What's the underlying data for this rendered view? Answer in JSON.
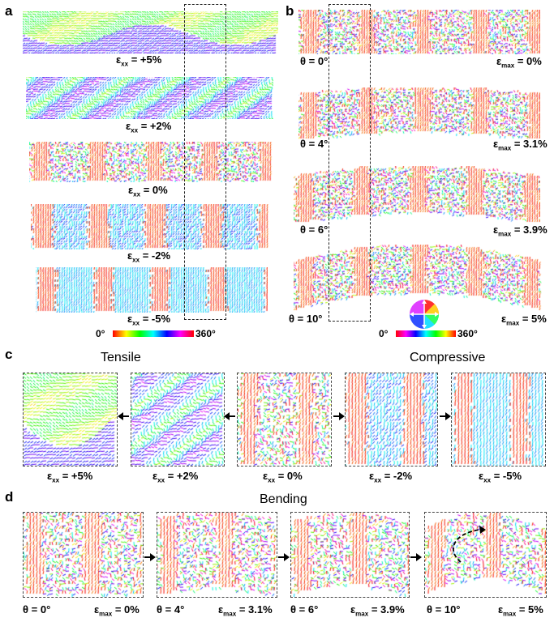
{
  "panels": {
    "a": {
      "letter": "a",
      "strips": [
        {
          "label": "ε",
          "sub": "xx",
          "value": "= +5%",
          "mode": "tensile5"
        },
        {
          "label": "ε",
          "sub": "xx",
          "value": "= +2%",
          "mode": "tensile2"
        },
        {
          "label": "ε",
          "sub": "xx",
          "value": "= 0%",
          "mode": "neutral"
        },
        {
          "label": "ε",
          "sub": "xx",
          "value": "= -2%",
          "mode": "comp2"
        },
        {
          "label": "ε",
          "sub": "xx",
          "value": "= -5%",
          "mode": "comp5"
        }
      ],
      "colorbar": {
        "min_label": "0°",
        "max_label": "360°"
      }
    },
    "b": {
      "letter": "b",
      "strips": [
        {
          "theta": "θ = 0°",
          "label": "ε",
          "sub": "max",
          "value": "= 0%",
          "bend": 0
        },
        {
          "theta": "θ = 4°",
          "label": "ε",
          "sub": "max",
          "value": "= 3.1%",
          "bend": 4
        },
        {
          "theta": "θ = 6°",
          "label": "ε",
          "sub": "max",
          "value": "= 3.9%",
          "bend": 6
        },
        {
          "theta": "θ = 10°",
          "label": "ε",
          "sub": "max",
          "value": "= 5%",
          "bend": 10
        }
      ],
      "colorbar": {
        "min_label": "0°",
        "max_label": "360°"
      }
    },
    "c": {
      "letter": "c",
      "tensile_title": "Tensile",
      "compressive_title": "Compressive",
      "tiles": [
        {
          "label": "ε",
          "sub": "xx",
          "value": "= +5%",
          "mode": "tensile5"
        },
        {
          "label": "ε",
          "sub": "xx",
          "value": "= +2%",
          "mode": "tensile2"
        },
        {
          "label": "ε",
          "sub": "xx",
          "value": "= 0%",
          "mode": "neutral"
        },
        {
          "label": "ε",
          "sub": "xx",
          "value": "= -2%",
          "mode": "comp2"
        },
        {
          "label": "ε",
          "sub": "xx",
          "value": "= -5%",
          "mode": "comp5"
        }
      ]
    },
    "d": {
      "letter": "d",
      "title": "Bending",
      "tiles": [
        {
          "theta": "θ = 0°",
          "label": "ε",
          "sub": "max",
          "value": "= 0%",
          "bend": 0
        },
        {
          "theta": "θ = 4°",
          "label": "ε",
          "sub": "max",
          "value": "= 3.1%",
          "bend": 4
        },
        {
          "theta": "θ = 6°",
          "label": "ε",
          "sub": "max",
          "value": "= 3.9%",
          "bend": 6
        },
        {
          "theta": "θ = 10°",
          "label": "ε",
          "sub": "max",
          "value": "= 5%",
          "bend": 10
        }
      ]
    }
  }
}
